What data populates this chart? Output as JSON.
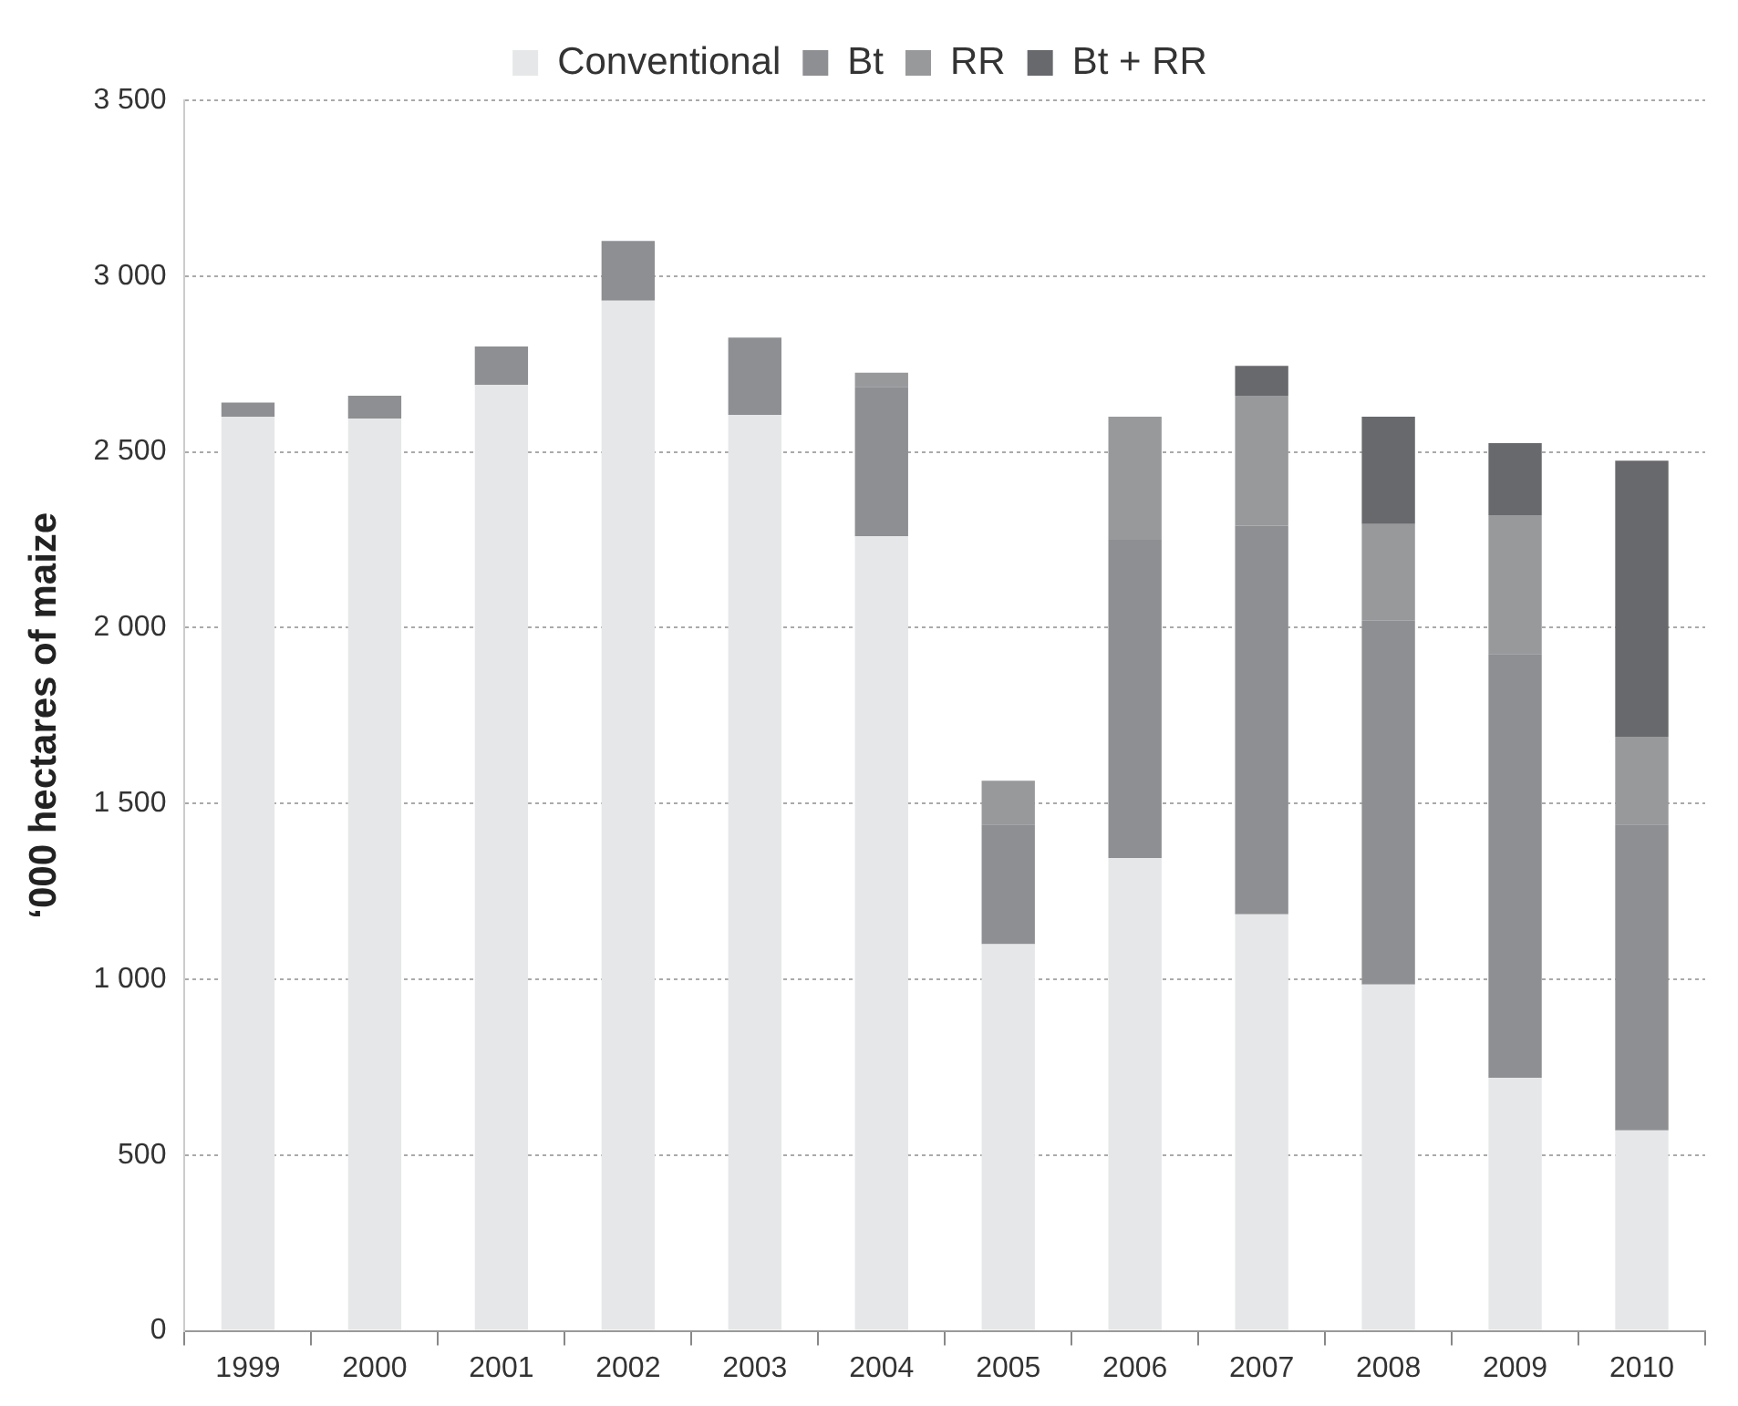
{
  "chart_data": {
    "type": "bar",
    "stacked": true,
    "ylabel": "‘000 hectares of maize",
    "categories": [
      "1999",
      "2000",
      "2001",
      "2002",
      "2003",
      "2004",
      "2005",
      "2006",
      "2007",
      "2008",
      "2009",
      "2010"
    ],
    "series": [
      {
        "name": "Conventional",
        "color": "#e6e7e8",
        "values": [
          2600,
          2595,
          2690,
          2930,
          2605,
          2260,
          1100,
          1345,
          1185,
          985,
          720,
          570
        ]
      },
      {
        "name": "Bt",
        "color": "#8e8f93",
        "values": [
          40,
          65,
          110,
          170,
          220,
          425,
          340,
          905,
          1105,
          1035,
          1205,
          870
        ]
      },
      {
        "name": "RR",
        "color": "#98999b",
        "values": [
          null,
          null,
          null,
          null,
          null,
          40,
          125,
          350,
          370,
          275,
          395,
          250
        ]
      },
      {
        "name": "Bt + RR",
        "color": "#68696d",
        "values": [
          null,
          null,
          null,
          null,
          null,
          null,
          null,
          null,
          85,
          305,
          205,
          785
        ]
      }
    ],
    "ylim": [
      0,
      3500
    ],
    "yticks": [
      {
        "value": 0,
        "label": "0"
      },
      {
        "value": 500,
        "label": "500"
      },
      {
        "value": 1000,
        "label": "1 000"
      },
      {
        "value": 1500,
        "label": "1 500"
      },
      {
        "value": 2000,
        "label": "2 000"
      },
      {
        "value": 2500,
        "label": "2 500"
      },
      {
        "value": 3000,
        "label": "3 000"
      },
      {
        "value": 3500,
        "label": "3 500"
      }
    ],
    "grid": "y",
    "legend": "top"
  }
}
